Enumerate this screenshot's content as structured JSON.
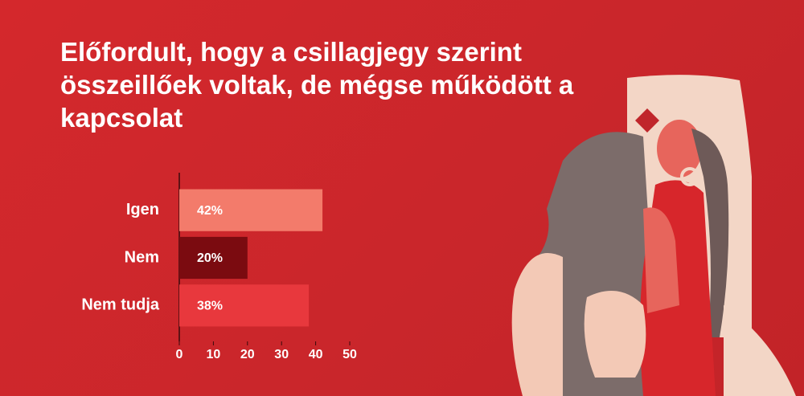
{
  "chart_data": {
    "type": "bar",
    "orientation": "horizontal",
    "title": "Előfordult, hogy a csillagjegy szerint összeillőek voltak, de mégse működött a kapcsolat",
    "categories": [
      "Igen",
      "Nem",
      "Nem tudja"
    ],
    "values": [
      42,
      20,
      38
    ],
    "value_labels": [
      "42%",
      "20%",
      "38%"
    ],
    "colors": [
      "#f37b6b",
      "#7b0b10",
      "#e8383d"
    ],
    "xlim": [
      0,
      50
    ],
    "xticks": [
      0,
      10,
      20,
      30,
      40,
      50
    ],
    "grid": false
  }
}
